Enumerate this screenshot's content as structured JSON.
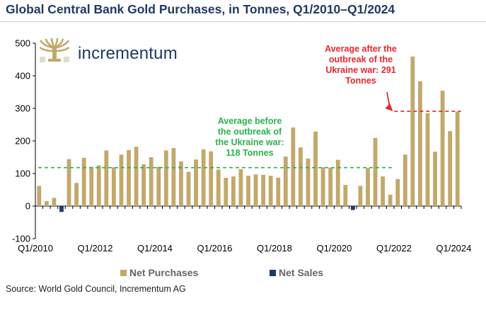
{
  "title": "Global Central Bank Gold Purchases, in Tonnes, Q1/2010–Q1/2024",
  "source": "Source: World Gold Council, Incrementum AG",
  "logo": {
    "name": "incrementum"
  },
  "colors": {
    "purchases": "#c2a86b",
    "sales": "#1f3a63",
    "avg_before": "#2bb24c",
    "avg_after": "#e8262b"
  },
  "annotations": {
    "before": [
      "Average before",
      "the outbreak of",
      "the Ukraine war:",
      "118 Tonnes"
    ],
    "after": [
      "Average after the",
      "outbreak of the",
      "Ukraine war: 291",
      "Tonnes"
    ]
  },
  "legend": {
    "purchases": "Net Purchases",
    "sales": "Net Sales"
  },
  "chart_data": {
    "type": "bar",
    "title": "Global Central Bank Gold Purchases, in Tonnes, Q1/2010–Q1/2024",
    "xlabel": "",
    "ylabel": "",
    "ylim": [
      -100,
      500
    ],
    "yticks": [
      -100,
      0,
      100,
      200,
      300,
      400,
      500
    ],
    "xtick_labels": [
      "Q1/2010",
      "Q1/2012",
      "Q1/2014",
      "Q1/2016",
      "Q1/2018",
      "Q1/2020",
      "Q1/2022",
      "Q1/2024"
    ],
    "categories": [
      "Q1/2010",
      "Q2/2010",
      "Q3/2010",
      "Q4/2010",
      "Q1/2011",
      "Q2/2011",
      "Q3/2011",
      "Q4/2011",
      "Q1/2012",
      "Q2/2012",
      "Q3/2012",
      "Q4/2012",
      "Q1/2013",
      "Q2/2013",
      "Q3/2013",
      "Q4/2013",
      "Q1/2014",
      "Q2/2014",
      "Q3/2014",
      "Q4/2014",
      "Q1/2015",
      "Q2/2015",
      "Q3/2015",
      "Q4/2015",
      "Q1/2016",
      "Q2/2016",
      "Q3/2016",
      "Q4/2016",
      "Q1/2017",
      "Q2/2017",
      "Q3/2017",
      "Q4/2017",
      "Q1/2018",
      "Q2/2018",
      "Q3/2018",
      "Q4/2018",
      "Q1/2019",
      "Q2/2019",
      "Q3/2019",
      "Q4/2019",
      "Q1/2020",
      "Q2/2020",
      "Q3/2020",
      "Q4/2020",
      "Q1/2021",
      "Q2/2021",
      "Q3/2021",
      "Q4/2021",
      "Q1/2022",
      "Q2/2022",
      "Q3/2022",
      "Q4/2022",
      "Q1/2023",
      "Q2/2023",
      "Q3/2023",
      "Q4/2023",
      "Q1/2024"
    ],
    "series": [
      {
        "name": "Net Purchases",
        "values": [
          62,
          15,
          25,
          0,
          144,
          71,
          148,
          120,
          125,
          171,
          119,
          158,
          172,
          182,
          128,
          150,
          121,
          171,
          178,
          137,
          105,
          143,
          174,
          168,
          112,
          87,
          91,
          113,
          93,
          97,
          96,
          93,
          87,
          152,
          241,
          180,
          146,
          229,
          119,
          118,
          142,
          65,
          0,
          62,
          117,
          209,
          91,
          35,
          83,
          158,
          459,
          383,
          285,
          167,
          354,
          230,
          290
        ]
      },
      {
        "name": "Net Sales",
        "values": [
          0,
          0,
          0,
          -18,
          0,
          0,
          0,
          0,
          0,
          0,
          0,
          0,
          0,
          0,
          0,
          0,
          0,
          0,
          0,
          0,
          0,
          0,
          0,
          0,
          0,
          0,
          0,
          0,
          0,
          0,
          0,
          0,
          0,
          0,
          0,
          0,
          0,
          0,
          0,
          0,
          0,
          0,
          -12,
          0,
          0,
          0,
          0,
          0,
          0,
          0,
          0,
          0,
          0,
          0,
          0,
          0,
          0
        ]
      }
    ],
    "reference_lines": [
      {
        "label": "Average before the outbreak of the Ukraine war",
        "value": 118,
        "from": "Q1/2010",
        "to": "Q4/2021",
        "style": "dashed",
        "color": "#2bb24c"
      },
      {
        "label": "Average after the outbreak of the Ukraine war",
        "value": 291,
        "from": "Q1/2022",
        "to": "Q1/2024",
        "style": "dashed",
        "color": "#e8262b"
      }
    ],
    "grid": false,
    "legend_position": "bottom"
  }
}
